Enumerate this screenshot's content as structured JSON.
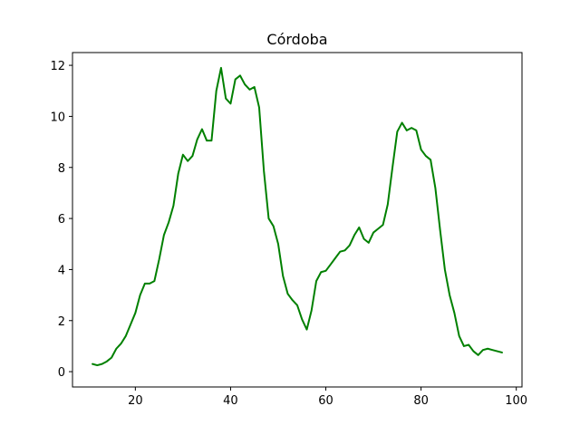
{
  "chart_data": {
    "type": "line",
    "title": "Córdoba",
    "xlabel": "",
    "ylabel": "",
    "xlim": [
      6.8,
      101.2
    ],
    "ylim": [
      -0.6,
      12.5
    ],
    "xticks": [
      20,
      40,
      60,
      80,
      100
    ],
    "yticks": [
      0,
      2,
      4,
      6,
      8,
      10,
      12
    ],
    "grid": false,
    "series": [
      {
        "color": "#008000",
        "x": [
          11,
          12,
          13,
          14,
          15,
          16,
          17,
          18,
          19,
          20,
          21,
          22,
          23,
          24,
          25,
          26,
          27,
          28,
          29,
          30,
          31,
          32,
          33,
          34,
          35,
          36,
          37,
          38,
          39,
          40,
          41,
          42,
          43,
          44,
          45,
          46,
          47,
          48,
          49,
          50,
          51,
          52,
          53,
          54,
          55,
          56,
          57,
          58,
          59,
          60,
          61,
          62,
          63,
          64,
          65,
          66,
          67,
          68,
          69,
          70,
          71,
          72,
          73,
          74,
          75,
          76,
          77,
          78,
          79,
          80,
          81,
          82,
          83,
          84,
          85,
          86,
          87,
          88,
          89,
          90,
          91,
          92,
          93,
          94,
          95,
          96,
          97
        ],
        "y": [
          0.3,
          0.25,
          0.3,
          0.4,
          0.55,
          0.9,
          1.1,
          1.4,
          1.85,
          2.3,
          3.0,
          3.45,
          3.45,
          3.55,
          4.4,
          5.35,
          5.85,
          6.5,
          7.75,
          8.5,
          8.25,
          8.45,
          9.1,
          9.5,
          9.05,
          9.05,
          11.0,
          11.9,
          10.7,
          10.5,
          11.45,
          11.6,
          11.25,
          11.05,
          11.15,
          10.35,
          7.85,
          6.0,
          5.7,
          5.0,
          3.75,
          3.05,
          2.8,
          2.6,
          2.05,
          1.65,
          2.4,
          3.55,
          3.9,
          3.95,
          4.2,
          4.45,
          4.7,
          4.75,
          4.95,
          5.35,
          5.65,
          5.2,
          5.05,
          5.45,
          5.6,
          5.75,
          6.55,
          8.0,
          9.4,
          9.75,
          9.45,
          9.55,
          9.45,
          8.7,
          8.45,
          8.3,
          7.2,
          5.55,
          4.0,
          3.0,
          2.3,
          1.4,
          1.0,
          1.05,
          0.8,
          0.65,
          0.85,
          0.9,
          0.85,
          0.8,
          0.75
        ]
      }
    ]
  }
}
